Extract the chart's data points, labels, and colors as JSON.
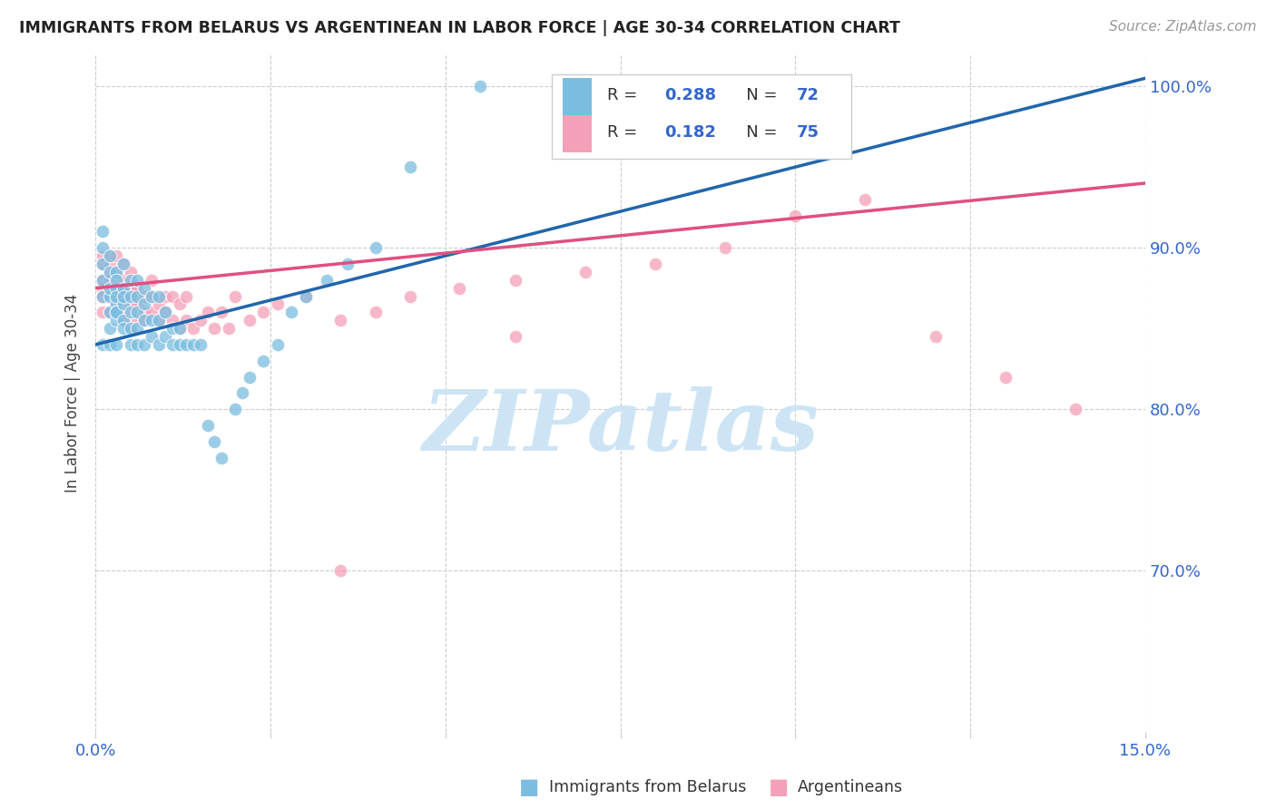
{
  "title": "IMMIGRANTS FROM BELARUS VS ARGENTINEAN IN LABOR FORCE | AGE 30-34 CORRELATION CHART",
  "source": "Source: ZipAtlas.com",
  "ylabel": "In Labor Force | Age 30-34",
  "xlim": [
    0.0,
    0.15
  ],
  "ylim": [
    0.6,
    1.02
  ],
  "y_ticks": [
    0.7,
    0.8,
    0.9,
    1.0
  ],
  "y_tick_labels": [
    "70.0%",
    "80.0%",
    "90.0%",
    "100.0%"
  ],
  "legend_r_belarus": "0.288",
  "legend_n_belarus": "72",
  "legend_r_arg": "0.182",
  "legend_n_arg": "75",
  "color_belarus": "#7bbde0",
  "color_arg": "#f4a0b8",
  "trendline_color_belarus": "#2166ac",
  "trendline_color_arg": "#e05080",
  "background_color": "#ffffff",
  "watermark_color": "#cde4f5",
  "belarus_x": [
    0.001,
    0.001,
    0.001,
    0.001,
    0.001,
    0.001,
    0.002,
    0.002,
    0.002,
    0.002,
    0.002,
    0.002,
    0.002,
    0.003,
    0.003,
    0.003,
    0.003,
    0.003,
    0.003,
    0.003,
    0.003,
    0.003,
    0.004,
    0.004,
    0.004,
    0.004,
    0.004,
    0.004,
    0.005,
    0.005,
    0.005,
    0.005,
    0.005,
    0.006,
    0.006,
    0.006,
    0.006,
    0.006,
    0.007,
    0.007,
    0.007,
    0.007,
    0.008,
    0.008,
    0.008,
    0.009,
    0.009,
    0.009,
    0.01,
    0.01,
    0.011,
    0.011,
    0.012,
    0.012,
    0.013,
    0.014,
    0.015,
    0.016,
    0.017,
    0.018,
    0.02,
    0.021,
    0.022,
    0.024,
    0.026,
    0.028,
    0.03,
    0.033,
    0.036,
    0.04,
    0.045,
    0.055
  ],
  "belarus_y": [
    0.87,
    0.88,
    0.89,
    0.9,
    0.91,
    0.84,
    0.85,
    0.87,
    0.885,
    0.895,
    0.86,
    0.875,
    0.84,
    0.855,
    0.865,
    0.875,
    0.885,
    0.86,
    0.87,
    0.88,
    0.84,
    0.86,
    0.855,
    0.865,
    0.875,
    0.85,
    0.87,
    0.89,
    0.84,
    0.86,
    0.87,
    0.85,
    0.88,
    0.85,
    0.86,
    0.87,
    0.88,
    0.84,
    0.855,
    0.865,
    0.84,
    0.875,
    0.845,
    0.855,
    0.87,
    0.84,
    0.855,
    0.87,
    0.845,
    0.86,
    0.84,
    0.85,
    0.84,
    0.85,
    0.84,
    0.84,
    0.84,
    0.79,
    0.78,
    0.77,
    0.8,
    0.81,
    0.82,
    0.83,
    0.84,
    0.86,
    0.87,
    0.88,
    0.89,
    0.9,
    0.95,
    1.0
  ],
  "arg_x": [
    0.001,
    0.001,
    0.001,
    0.001,
    0.001,
    0.001,
    0.002,
    0.002,
    0.002,
    0.002,
    0.002,
    0.002,
    0.002,
    0.003,
    0.003,
    0.003,
    0.003,
    0.003,
    0.003,
    0.003,
    0.004,
    0.004,
    0.004,
    0.004,
    0.004,
    0.005,
    0.005,
    0.005,
    0.005,
    0.005,
    0.006,
    0.006,
    0.006,
    0.007,
    0.007,
    0.007,
    0.008,
    0.008,
    0.008,
    0.009,
    0.009,
    0.01,
    0.01,
    0.011,
    0.011,
    0.012,
    0.012,
    0.013,
    0.013,
    0.014,
    0.015,
    0.016,
    0.017,
    0.018,
    0.019,
    0.02,
    0.022,
    0.024,
    0.026,
    0.03,
    0.035,
    0.04,
    0.045,
    0.052,
    0.06,
    0.07,
    0.08,
    0.09,
    0.1,
    0.11,
    0.12,
    0.13,
    0.14,
    0.06,
    0.035
  ],
  "arg_y": [
    0.875,
    0.88,
    0.89,
    0.895,
    0.87,
    0.86,
    0.87,
    0.88,
    0.885,
    0.89,
    0.86,
    0.875,
    0.895,
    0.865,
    0.875,
    0.885,
    0.86,
    0.87,
    0.88,
    0.895,
    0.86,
    0.87,
    0.88,
    0.89,
    0.855,
    0.865,
    0.875,
    0.85,
    0.87,
    0.885,
    0.855,
    0.865,
    0.875,
    0.86,
    0.87,
    0.855,
    0.86,
    0.87,
    0.88,
    0.855,
    0.865,
    0.86,
    0.87,
    0.855,
    0.87,
    0.85,
    0.865,
    0.855,
    0.87,
    0.85,
    0.855,
    0.86,
    0.85,
    0.86,
    0.85,
    0.87,
    0.855,
    0.86,
    0.865,
    0.87,
    0.855,
    0.86,
    0.87,
    0.875,
    0.88,
    0.885,
    0.89,
    0.9,
    0.92,
    0.93,
    0.845,
    0.82,
    0.8,
    0.845,
    0.7
  ],
  "trendline_belarus": [
    0.84,
    1.005
  ],
  "trendline_arg": [
    0.875,
    0.94
  ]
}
